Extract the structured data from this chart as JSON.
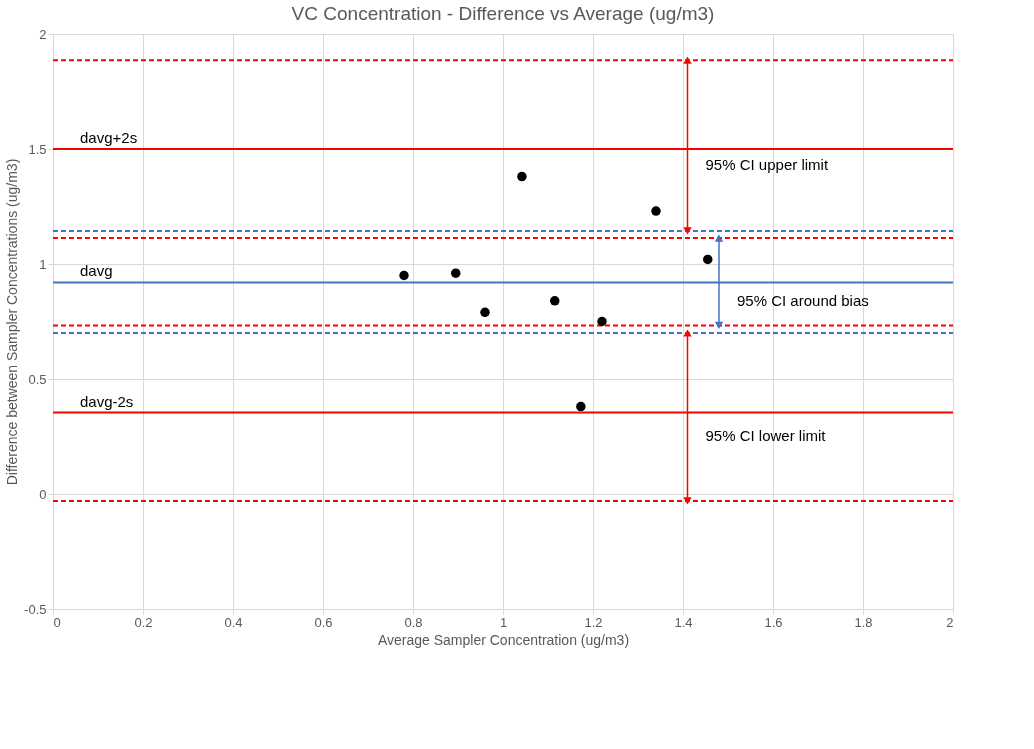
{
  "chart_data": {
    "type": "scatter",
    "title": "VC Concentration - Difference vs Average (ug/m3)",
    "xlabel": "Average Sampler Concentration (ug/m3)",
    "ylabel": "Difference between Sampler Concentrations  (ug/m3)",
    "xlim": [
      0,
      2
    ],
    "xticks": [
      0,
      0.2,
      0.4,
      0.6,
      0.8,
      1,
      1.2,
      1.4,
      1.6,
      1.8,
      2
    ],
    "ylim": [
      -0.5,
      2
    ],
    "yticks": [
      -0.5,
      0,
      0.5,
      1,
      1.5,
      2
    ],
    "grid": true,
    "marker": "circle",
    "series": [
      {
        "color": "#000000",
        "x": [
          0.78,
          0.895,
          0.96,
          1.042,
          1.115,
          1.173,
          1.22,
          1.34,
          1.455
        ],
        "values": [
          0.95,
          0.96,
          0.79,
          1.38,
          0.84,
          0.38,
          0.75,
          1.23,
          1.02
        ]
      },
      {
        "type": "line",
        "name": "95% CI upper limit",
        "marker": "triangle",
        "color": "#ff0000",
        "x": [
          1.41,
          1.41
        ],
        "values": [
          1.886,
          1.144
        ]
      },
      {
        "type": "line",
        "name": "95% CI around bias",
        "marker": "triangle",
        "color": "#4472c4",
        "x": [
          1.48,
          1.48
        ],
        "values": [
          0.733,
          1.113
        ]
      },
      {
        "type": "line",
        "name": "95% CI lower limit",
        "marker": "triangle",
        "color": "#ff0000",
        "x": [
          1.41,
          1.41
        ],
        "values": [
          -0.03,
          0.7
        ]
      }
    ],
    "ref_lines": [
      {
        "axis": "y",
        "value": 1.886,
        "color": "#ff0000",
        "line_style": "dashed"
      },
      {
        "axis": "y",
        "value": 1.5,
        "label": "davg+2s",
        "color": "#ff0000",
        "line_style": "solid"
      },
      {
        "axis": "y",
        "value": 1.144,
        "color": "#4472c4",
        "line_style": "dashed"
      },
      {
        "axis": "y",
        "value": 1.113,
        "color": "#ff0000",
        "line_style": "dashed"
      },
      {
        "axis": "y",
        "value": 0.92,
        "label": "davg",
        "color": "#4472c4",
        "line_style": "solid"
      },
      {
        "axis": "y",
        "value": 0.733,
        "color": "#ff0000",
        "line_style": "dashed"
      },
      {
        "axis": "y",
        "value": 0.7,
        "color": "#4472c4",
        "line_style": "dashed"
      },
      {
        "axis": "y",
        "value": 0.354,
        "label": "davg-2s",
        "color": "#ff0000",
        "line_style": "solid"
      },
      {
        "axis": "y",
        "value": -0.03,
        "color": "#ff0000",
        "line_style": "dashed"
      }
    ]
  }
}
